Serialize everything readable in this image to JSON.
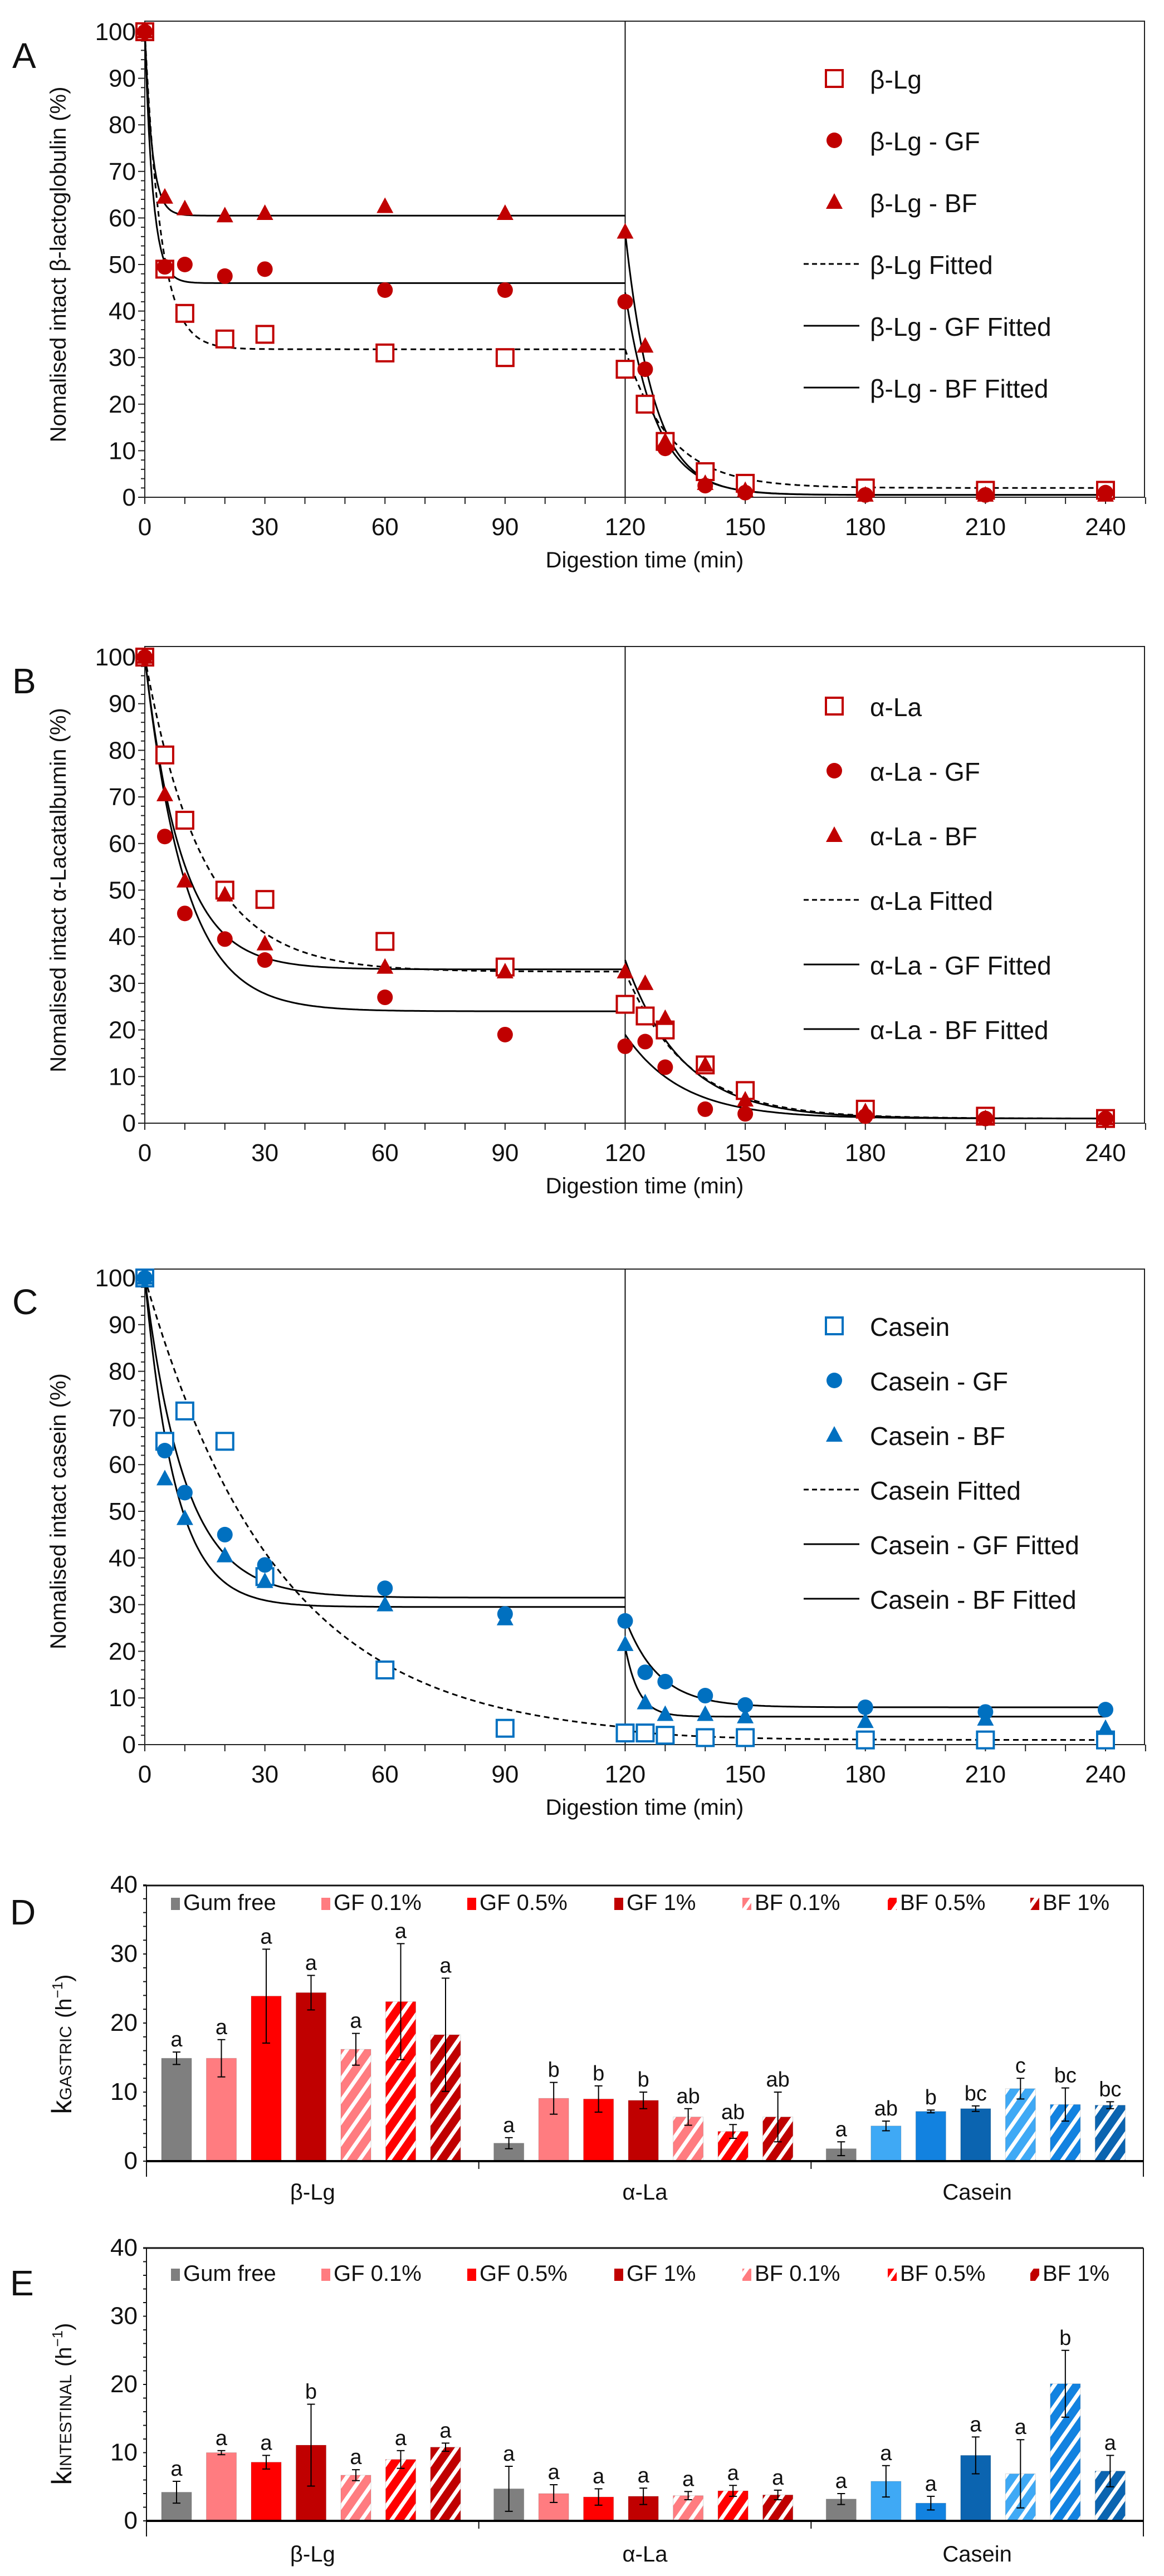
{
  "line_panels": [
    {
      "letter": "A",
      "ylabel": "Nomalised intact β-lactoglobulin (%)",
      "xlabel": "Digestion time (min)",
      "color": "#c00000",
      "legend": [
        "β-Lg",
        "β-Lg - GF",
        "β-Lg - BF",
        "β-Lg Fitted",
        "β-Lg - GF Fitted",
        "β-Lg - BF Fitted"
      ]
    },
    {
      "letter": "B",
      "ylabel": "Nomalised intact α-Lacatalbumin (%)",
      "xlabel": "Digestion time (min)",
      "color": "#c00000",
      "legend": [
        "α-La",
        "α-La - GF",
        "α-La - BF",
        "α-La Fitted",
        "α-La - GF Fitted",
        "α-La - BF Fitted"
      ]
    },
    {
      "letter": "C",
      "ylabel": "Nomalised intact casein (%)",
      "xlabel": "Digestion time (min)",
      "color": "#0070c0",
      "legend": [
        "Casein",
        "Casein - GF",
        "Casein - BF",
        "Casein Fitted",
        "Casein - GF Fitted",
        "Casein - BF Fitted"
      ]
    }
  ],
  "bar_panels": [
    {
      "letter": "D",
      "ylabel_main": "k",
      "ylabel_sub": "GASTRIC",
      "ylabel_unit": "(h",
      "ylabel_sup": "−1",
      "ylabel_close": ")"
    },
    {
      "letter": "E",
      "ylabel_main": "k",
      "ylabel_sub": "INTESTINAL",
      "ylabel_unit": "(h",
      "ylabel_sup": "−1",
      "ylabel_close": ")"
    }
  ],
  "chart_data": [
    {
      "type": "scatter",
      "title": "A",
      "xlabel": "Digestion time (min)",
      "ylabel": "Nomalised intact β-lactoglobulin (%)",
      "xlim": [
        0,
        240
      ],
      "ylim": [
        0,
        100
      ],
      "xticks": [
        0,
        30,
        60,
        90,
        120,
        150,
        180,
        210,
        240
      ],
      "yticks": [
        0,
        10,
        20,
        30,
        40,
        50,
        60,
        70,
        80,
        90,
        100
      ],
      "vline_x": 120,
      "legend_position": "top-right",
      "x": [
        0,
        5,
        10,
        20,
        30,
        60,
        90,
        120,
        125,
        130,
        140,
        150,
        180,
        210,
        240
      ],
      "series": [
        {
          "name": "β-Lg",
          "marker": "open-square",
          "values": [
            100,
            49,
            39.5,
            34,
            35,
            31,
            30,
            27.5,
            20,
            12,
            5.5,
            3,
            2,
            1.5,
            1.5
          ]
        },
        {
          "name": "β-Lg - GF",
          "marker": "circle",
          "values": [
            100,
            49.5,
            50,
            47.5,
            49,
            44.5,
            44.5,
            42,
            27.5,
            10.5,
            2.5,
            1,
            0.5,
            0.5,
            1
          ]
        },
        {
          "name": "β-Lg - BF",
          "marker": "triangle",
          "values": [
            100,
            64.5,
            62,
            60.5,
            61,
            62.5,
            61,
            57,
            32.5,
            12,
            3,
            1.5,
            0.5,
            0.5,
            0.5
          ]
        }
      ],
      "fits": [
        {
          "name": "β-Lg Fitted",
          "style": "dashed",
          "gastric": {
            "start": 100,
            "plateau": 31.8,
            "k": 0.25
          },
          "intestinal": {
            "start": 31.8,
            "plateau": 2,
            "k": 0.09
          }
        },
        {
          "name": "β-Lg - GF Fitted",
          "style": "solid",
          "gastric": {
            "start": 100,
            "plateau": 46,
            "k": 0.5
          },
          "intestinal": {
            "start": 44,
            "plateau": 0.5,
            "k": 0.13
          }
        },
        {
          "name": "β-Lg - BF Fitted",
          "style": "solid",
          "gastric": {
            "start": 100,
            "plateau": 60.5,
            "k": 0.55
          },
          "intestinal": {
            "start": 57,
            "plateau": 0.5,
            "k": 0.14
          }
        }
      ]
    },
    {
      "type": "scatter",
      "title": "B",
      "xlabel": "Digestion time (min)",
      "ylabel": "Nomalised intact α-Lacatalbumin (%)",
      "xlim": [
        0,
        240
      ],
      "ylim": [
        0,
        100
      ],
      "xticks": [
        0,
        30,
        60,
        90,
        120,
        150,
        180,
        210,
        240
      ],
      "yticks": [
        0,
        10,
        20,
        30,
        40,
        50,
        60,
        70,
        80,
        90,
        100
      ],
      "vline_x": 120,
      "legend_position": "top-right",
      "x": [
        0,
        5,
        10,
        20,
        30,
        60,
        90,
        120,
        125,
        130,
        140,
        150,
        180,
        210,
        240
      ],
      "series": [
        {
          "name": "α-La",
          "marker": "open-square",
          "values": [
            100,
            79,
            65,
            50,
            48,
            39,
            33.5,
            25.5,
            23,
            20,
            12.5,
            7,
            3,
            1.5,
            1
          ]
        },
        {
          "name": "α-La - GF",
          "marker": "circle",
          "values": [
            100,
            61.5,
            45,
            39.5,
            35,
            27,
            19,
            16.5,
            17.5,
            12,
            3,
            2,
            1.5,
            1,
            1
          ]
        },
        {
          "name": "α-La - BF",
          "marker": "triangle",
          "values": [
            100,
            70.5,
            52,
            49,
            38.5,
            33.5,
            32.5,
            32.5,
            30,
            22.5,
            12.5,
            5,
            2.5,
            1,
            1
          ]
        }
      ],
      "fits": [
        {
          "name": "α-La Fitted",
          "style": "dashed",
          "gastric": {
            "start": 100,
            "plateau": 32.5,
            "k": 0.07
          },
          "intestinal": {
            "start": 32.5,
            "plateau": 1,
            "k": 0.065
          }
        },
        {
          "name": "α-La - GF Fitted",
          "style": "solid",
          "gastric": {
            "start": 100,
            "plateau": 24,
            "k": 0.1
          },
          "intestinal": {
            "start": 19,
            "plateau": 1,
            "k": 0.07
          }
        },
        {
          "name": "α-La - BF Fitted",
          "style": "solid",
          "gastric": {
            "start": 100,
            "plateau": 33,
            "k": 0.11
          },
          "intestinal": {
            "start": 35,
            "plateau": 1,
            "k": 0.07
          }
        }
      ]
    },
    {
      "type": "scatter",
      "title": "C",
      "xlabel": "Digestion time (min)",
      "ylabel": "Nomalised intact casein (%)",
      "xlim": [
        0,
        240
      ],
      "ylim": [
        0,
        100
      ],
      "xticks": [
        0,
        30,
        60,
        90,
        120,
        150,
        180,
        210,
        240
      ],
      "yticks": [
        0,
        10,
        20,
        30,
        40,
        50,
        60,
        70,
        80,
        90,
        100
      ],
      "vline_x": 120,
      "legend_position": "top-right",
      "x": [
        0,
        5,
        10,
        20,
        30,
        60,
        90,
        120,
        125,
        130,
        140,
        150,
        180,
        210,
        240
      ],
      "series": [
        {
          "name": "Casein",
          "marker": "open-square",
          "values": [
            100,
            65,
            71.5,
            65,
            36,
            16,
            3.5,
            2.5,
            2.5,
            2,
            1.5,
            1.5,
            1,
            1,
            1
          ]
        },
        {
          "name": "Casein - GF",
          "marker": "circle",
          "values": [
            100,
            63,
            54,
            45,
            38.5,
            33.5,
            28,
            26.5,
            15.5,
            13.5,
            10.5,
            8.5,
            8,
            7,
            7.5
          ]
        },
        {
          "name": "Casein - BF",
          "marker": "triangle",
          "values": [
            100,
            57,
            48.5,
            40.5,
            35,
            30,
            27,
            21.5,
            9,
            6.5,
            6.5,
            6,
            5,
            5.5,
            3.5
          ]
        }
      ],
      "fits": [
        {
          "name": "Casein Fitted",
          "style": "dashed",
          "gastric": {
            "start": 100,
            "plateau": 1,
            "k": 0.03
          },
          "intestinal": {
            "start": 3,
            "plateau": 1,
            "k": 0.05
          }
        },
        {
          "name": "Casein - GF Fitted",
          "style": "solid",
          "gastric": {
            "start": 100,
            "plateau": 31.5,
            "k": 0.1
          },
          "intestinal": {
            "start": 27,
            "plateau": 8,
            "k": 0.12
          }
        },
        {
          "name": "Casein - BF Fitted",
          "style": "solid",
          "gastric": {
            "start": 100,
            "plateau": 29.5,
            "k": 0.13
          },
          "intestinal": {
            "start": 21,
            "plateau": 6,
            "k": 0.3
          }
        }
      ]
    },
    {
      "type": "bar",
      "title": "D",
      "ylabel": "kGASTRIC (h−1)",
      "ylim": [
        0,
        40
      ],
      "yticks": [
        0,
        10,
        20,
        30,
        40
      ],
      "legend_position": "top",
      "categories": [
        "β-Lg",
        "α-La",
        "Casein"
      ],
      "series_names": [
        "Gum free",
        "GF 0.1%",
        "GF 0.5%",
        "GF 1%",
        "BF 0.1%",
        "BF 0.5%",
        "BF 1%"
      ],
      "values": [
        [
          14.9,
          14.9,
          23.9,
          24.4,
          16.2,
          23.1,
          18.3
        ],
        [
          2.6,
          9.1,
          9.0,
          8.8,
          6.4,
          4.3,
          6.4
        ],
        [
          1.8,
          5.1,
          7.2,
          7.6,
          10.5,
          8.2,
          8.1
        ]
      ],
      "errors": [
        [
          0.9,
          2.7,
          6.8,
          2.5,
          2.3,
          8.4,
          8.2
        ],
        [
          0.8,
          2.3,
          1.9,
          1.2,
          1.2,
          1.0,
          3.6
        ],
        [
          1.0,
          0.7,
          0.2,
          0.4,
          1.5,
          2.4,
          0.5
        ]
      ],
      "letters": [
        [
          "a",
          "a",
          "a",
          "a",
          "a",
          "a",
          "a"
        ],
        [
          "a",
          "b",
          "b",
          "b",
          "ab",
          "ab",
          "ab"
        ],
        [
          "a",
          "ab",
          "b",
          "bc",
          "c",
          "bc",
          "bc"
        ]
      ]
    },
    {
      "type": "bar",
      "title": "E",
      "ylabel": "kINTESTINAL (h−1)",
      "ylim": [
        0,
        40
      ],
      "yticks": [
        0,
        10,
        20,
        30,
        40
      ],
      "legend_position": "top",
      "categories": [
        "β-Lg",
        "α-La",
        "Casein"
      ],
      "series_names": [
        "Gum free",
        "GF 0.1%",
        "GF 0.5%",
        "GF 1%",
        "BF 0.1%",
        "BF 0.5%",
        "BF 1%"
      ],
      "values": [
        [
          4.2,
          10.0,
          8.6,
          11.1,
          6.7,
          9.0,
          10.8
        ],
        [
          4.7,
          4.0,
          3.5,
          3.6,
          3.7,
          4.4,
          3.8
        ],
        [
          3.2,
          5.8,
          2.6,
          9.6,
          6.9,
          20.1,
          7.3
        ]
      ],
      "errors": [
        [
          1.6,
          0.3,
          1.0,
          6.0,
          0.8,
          1.3,
          0.6
        ],
        [
          3.3,
          1.3,
          1.2,
          1.2,
          0.6,
          0.8,
          0.7
        ],
        [
          0.8,
          2.3,
          1.0,
          2.7,
          5.0,
          4.9,
          2.3
        ]
      ],
      "letters": [
        [
          "a",
          "a",
          "a",
          "b",
          "a",
          "a",
          "a"
        ],
        [
          "a",
          "a",
          "a",
          "a",
          "a",
          "a",
          "a"
        ],
        [
          "a",
          "a",
          "a",
          "a",
          "a",
          "b",
          "a"
        ]
      ]
    }
  ],
  "colors": {
    "whey_marker": "#c00000",
    "casein_marker": "#0070c0",
    "gum_free": "#7f7f7f",
    "red_light": "#ff7c80",
    "red_mid": "#ff0000",
    "red_dark": "#c00000",
    "blue_light": "#3fa9f5",
    "blue_mid": "#1282e0",
    "blue_dark": "#0b64b0"
  }
}
